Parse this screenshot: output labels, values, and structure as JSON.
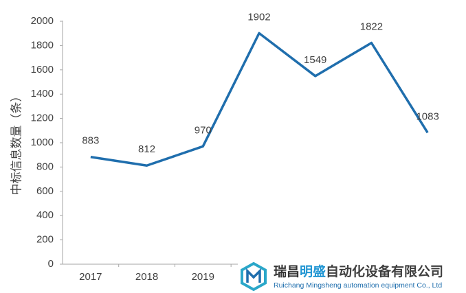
{
  "chart_data": {
    "type": "line",
    "y_label": "中标信息数量（条）",
    "categories": [
      "2017",
      "2018",
      "2019",
      null,
      null,
      null,
      null
    ],
    "series": [
      {
        "color": "#1f6ead",
        "values": [
          883,
          812,
          970,
          1902,
          1549,
          1822,
          1083
        ]
      }
    ],
    "ylim": [
      0,
      2000
    ],
    "yticks": [
      0,
      200,
      400,
      600,
      800,
      1000,
      1200,
      1400,
      1600,
      1800,
      2000
    ],
    "grid": false,
    "data_labels": true
  },
  "logo": {
    "name_parts": [
      "瑞昌",
      "明盛",
      "自动化设备有限公司"
    ],
    "subtitle": "Ruichang Mingsheng automation equipment Co., Ltd"
  }
}
